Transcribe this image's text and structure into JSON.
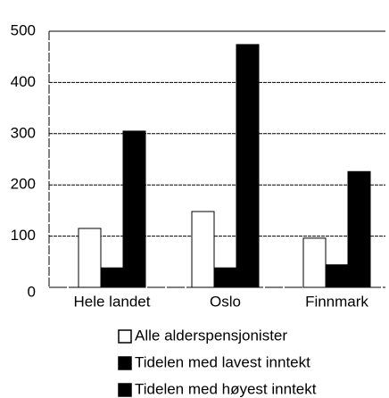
{
  "chart_data": {
    "type": "bar",
    "categories": [
      "Hele landet",
      "Oslo",
      "Finnmark"
    ],
    "series": [
      {
        "name": "Alle alderspensjonister",
        "color": "#ffffff",
        "values": [
          115,
          148,
          96
        ]
      },
      {
        "name": "Tidelen med lavest inntekt",
        "color": "#000000",
        "values": [
          38,
          38,
          44
        ]
      },
      {
        "name": "Tidelen med høyest inntekt",
        "color": "#000000",
        "values": [
          305,
          474,
          226
        ]
      }
    ],
    "ylim": [
      0,
      500
    ],
    "yticks": [
      0,
      100,
      200,
      300,
      400,
      500
    ],
    "grid": true
  }
}
